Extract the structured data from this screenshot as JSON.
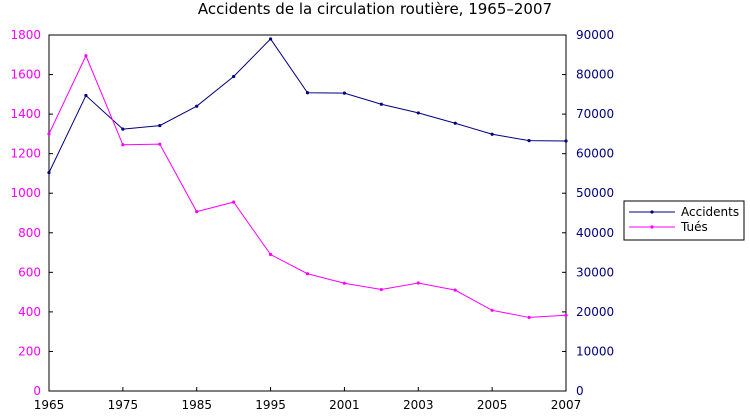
{
  "chart_data": {
    "type": "line",
    "title": "Accidents de la circulation routière, 1965–2007",
    "xlabel": "",
    "ylabel": "",
    "x": [
      1965,
      1970,
      1975,
      1980,
      1985,
      1990,
      1995,
      2000,
      2001,
      2002,
      2003,
      2004,
      2005,
      2006,
      2007
    ],
    "x_tick_labels": [
      "1965",
      "1975",
      "1985",
      "1995",
      "2001",
      "2003",
      "2005",
      "2007"
    ],
    "y_left_ticks": [
      "0",
      "200",
      "400",
      "600",
      "800",
      "1000",
      "1200",
      "1400",
      "1600",
      "1800"
    ],
    "y_right_ticks": [
      "0",
      "10000",
      "20000",
      "30000",
      "40000",
      "50000",
      "60000",
      "70000",
      "80000",
      "90000"
    ],
    "ylim_left": [
      0,
      1800
    ],
    "ylim_right": [
      0,
      90000
    ],
    "grid": false,
    "legend_position": "right",
    "series": [
      {
        "name": "Accidents",
        "axis": "right",
        "color": "#000080",
        "values": [
          55200,
          74700,
          66200,
          67100,
          72000,
          79500,
          89000,
          75400,
          75300,
          72500,
          70300,
          67700,
          64900,
          63300,
          63200
        ]
      },
      {
        "name": "Tués",
        "axis": "left",
        "color": "#ff00ff",
        "values": [
          1300,
          1695,
          1245,
          1248,
          907,
          955,
          690,
          593,
          545,
          513,
          546,
          510,
          408,
          372,
          383
        ]
      }
    ]
  }
}
